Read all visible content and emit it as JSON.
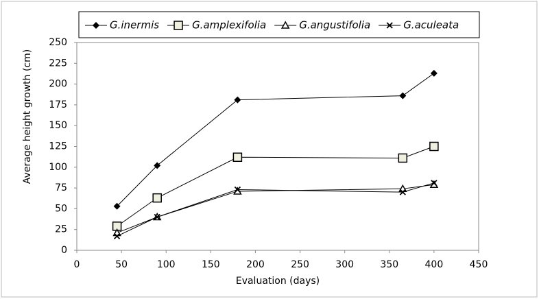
{
  "chart_data": {
    "type": "line",
    "xlabel": "Evaluation (days)",
    "ylabel": "Average height growth  (cm)",
    "x": [
      45,
      90,
      180,
      365,
      400
    ],
    "series": [
      {
        "name": "G.inermis",
        "color": "#000000",
        "marker": "diamond",
        "values": [
          53,
          102,
          181,
          186,
          213
        ]
      },
      {
        "name": "G.amplexifolia",
        "color": "#000000",
        "marker": "square",
        "values": [
          29,
          63,
          112,
          111,
          125
        ]
      },
      {
        "name": "G.angustifolia",
        "color": "#000000",
        "marker": "triangle",
        "values": [
          21,
          40,
          71,
          74,
          79
        ]
      },
      {
        "name": "G.aculeata",
        "color": "#000000",
        "marker": "x",
        "values": [
          17,
          40,
          73,
          70,
          81
        ]
      }
    ],
    "xlim": [
      0,
      450
    ],
    "xticks": [
      0,
      50,
      100,
      150,
      200,
      250,
      300,
      350,
      400,
      450
    ],
    "ylim": [
      0,
      250
    ],
    "yticks": [
      0,
      25,
      50,
      75,
      100,
      125,
      150,
      175,
      200,
      225,
      250
    ],
    "grid": false,
    "legend": "top"
  }
}
